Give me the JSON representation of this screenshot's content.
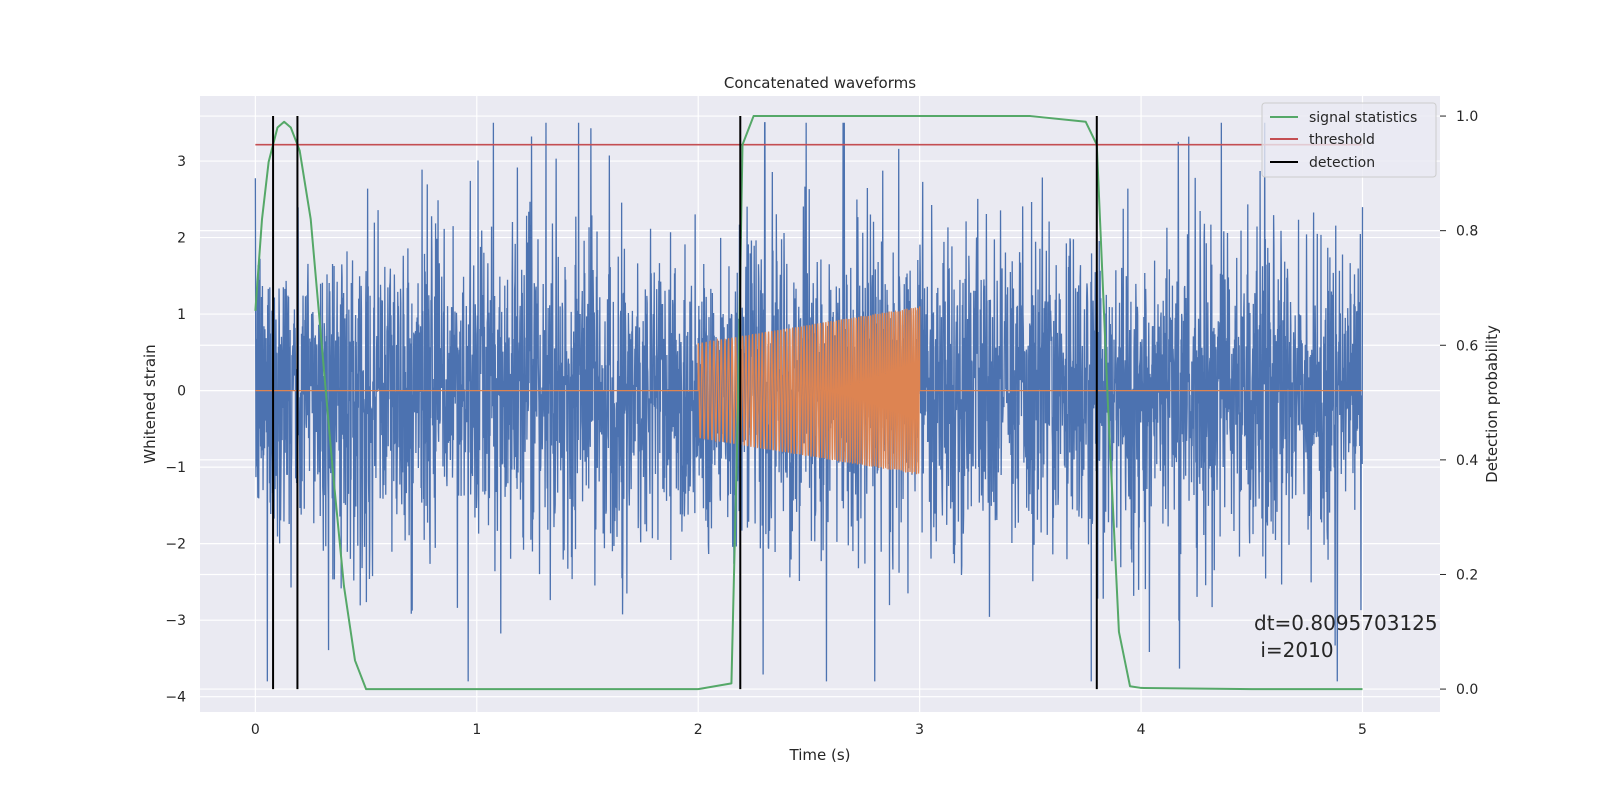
{
  "chart_data": {
    "type": "line",
    "title": "Concatenated waveforms",
    "xlabel": "Time (s)",
    "ylabel": "Whitened strain",
    "y2label": "Detection probability",
    "xlim": [
      -0.25,
      5.35
    ],
    "ylim": [
      -4.2,
      3.85
    ],
    "y2lim": [
      -0.04,
      1.035
    ],
    "xticks": [
      0,
      1,
      2,
      3,
      4,
      5
    ],
    "yticks": [
      -4,
      -3,
      -2,
      -1,
      0,
      1,
      2,
      3
    ],
    "y2ticks": [
      0.0,
      0.2,
      0.4,
      0.6,
      0.8,
      1.0
    ],
    "xtick_labels": [
      "0",
      "1",
      "2",
      "3",
      "4",
      "5"
    ],
    "ytick_labels": [
      "−4",
      "−3",
      "−2",
      "−1",
      "0",
      "1",
      "2",
      "3"
    ],
    "y2tick_labels": [
      "0.0",
      "0.2",
      "0.4",
      "0.6",
      "0.8",
      "1.0"
    ],
    "grid": true,
    "legend_position": "top-right",
    "series": [
      {
        "name": "",
        "axis": "left",
        "color": "#4c72b0",
        "kind": "noise",
        "x_range": [
          0,
          5
        ],
        "approx_amplitude_range": [
          -3.8,
          3.5
        ]
      },
      {
        "name": "",
        "axis": "left",
        "color": "#dd8452",
        "kind": "chirp",
        "x_range": [
          2.0,
          3.0
        ],
        "amplitude_start": 0.62,
        "amplitude_end": 1.1,
        "baseline": 0
      },
      {
        "name": "signal statistics",
        "axis": "right",
        "color": "#55a868",
        "x": [
          0,
          0.03,
          0.06,
          0.1,
          0.13,
          0.16,
          0.2,
          0.25,
          0.3,
          0.35,
          0.4,
          0.45,
          0.5,
          0.6,
          1.0,
          1.5,
          2.0,
          2.15,
          2.18,
          2.2,
          2.25,
          2.5,
          3.0,
          3.5,
          3.75,
          3.8,
          3.85,
          3.9,
          3.95,
          4.0,
          4.5,
          5.0
        ],
        "y": [
          0.66,
          0.82,
          0.92,
          0.98,
          0.99,
          0.98,
          0.94,
          0.82,
          0.6,
          0.38,
          0.18,
          0.05,
          0.0,
          0.0,
          0.0,
          0.0,
          0.0,
          0.01,
          0.5,
          0.95,
          1.0,
          1.0,
          1.0,
          1.0,
          0.99,
          0.95,
          0.5,
          0.1,
          0.005,
          0.002,
          0.0,
          0.0
        ]
      },
      {
        "name": "threshold",
        "axis": "right",
        "color": "#c44e52",
        "x": [
          0,
          5
        ],
        "y": [
          0.95,
          0.95
        ]
      }
    ],
    "detection": {
      "name": "detection",
      "color": "#000000",
      "x": [
        0.08,
        0.19,
        2.19,
        3.8
      ]
    },
    "annotations": [
      {
        "text": "dt=0.8095703125",
        "x": 4.5,
        "y": -3.0
      },
      {
        "text": " i=2010",
        "x": 4.5,
        "y": -3.35
      }
    ]
  }
}
